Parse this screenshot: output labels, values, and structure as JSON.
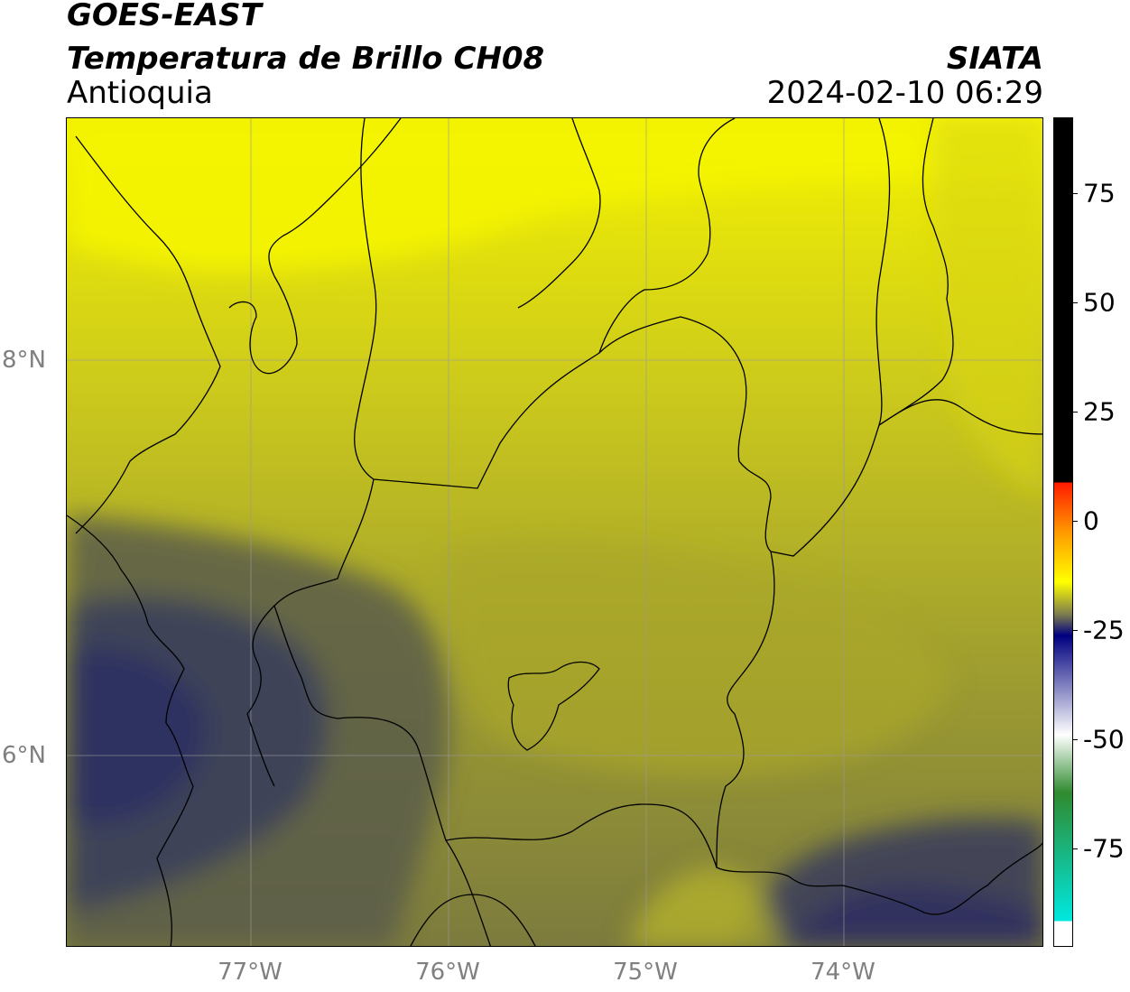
{
  "header": {
    "satellite": "GOES-EAST",
    "product": "Temperatura de Brillo CH08",
    "region": "Antioquia",
    "organization": "SIATA",
    "datetime": "2024-02-10 06:29"
  },
  "map": {
    "lon_range": [
      -77.94,
      -72.99
    ],
    "lat_range": [
      4.98,
      9.18
    ],
    "gridlines": true,
    "x_ticks": [
      "77°W",
      "76°W",
      "75°W",
      "74°W"
    ],
    "y_ticks": [
      "8°N",
      "6°N"
    ],
    "colors": {
      "north_band": "#f0f000",
      "mid_band": "#c6c41e",
      "south_band": "#8e8e34",
      "cold_region": "#3c3f58",
      "border_lines": "#000000",
      "grid": "#9a9a9a"
    }
  },
  "colorbar": {
    "tick_labels": [
      "75",
      "50",
      "25",
      "0",
      "-25",
      "-50",
      "-75"
    ],
    "colors": {
      "top": "#000000",
      "red": "#ff1a00",
      "orange": "#ff9900",
      "yellow": "#ffff00",
      "olive": "#7a7a50",
      "navy": "#000080",
      "white": "#ffffff",
      "green": "#2f8a2f",
      "cyan": "#00e8e0"
    }
  }
}
